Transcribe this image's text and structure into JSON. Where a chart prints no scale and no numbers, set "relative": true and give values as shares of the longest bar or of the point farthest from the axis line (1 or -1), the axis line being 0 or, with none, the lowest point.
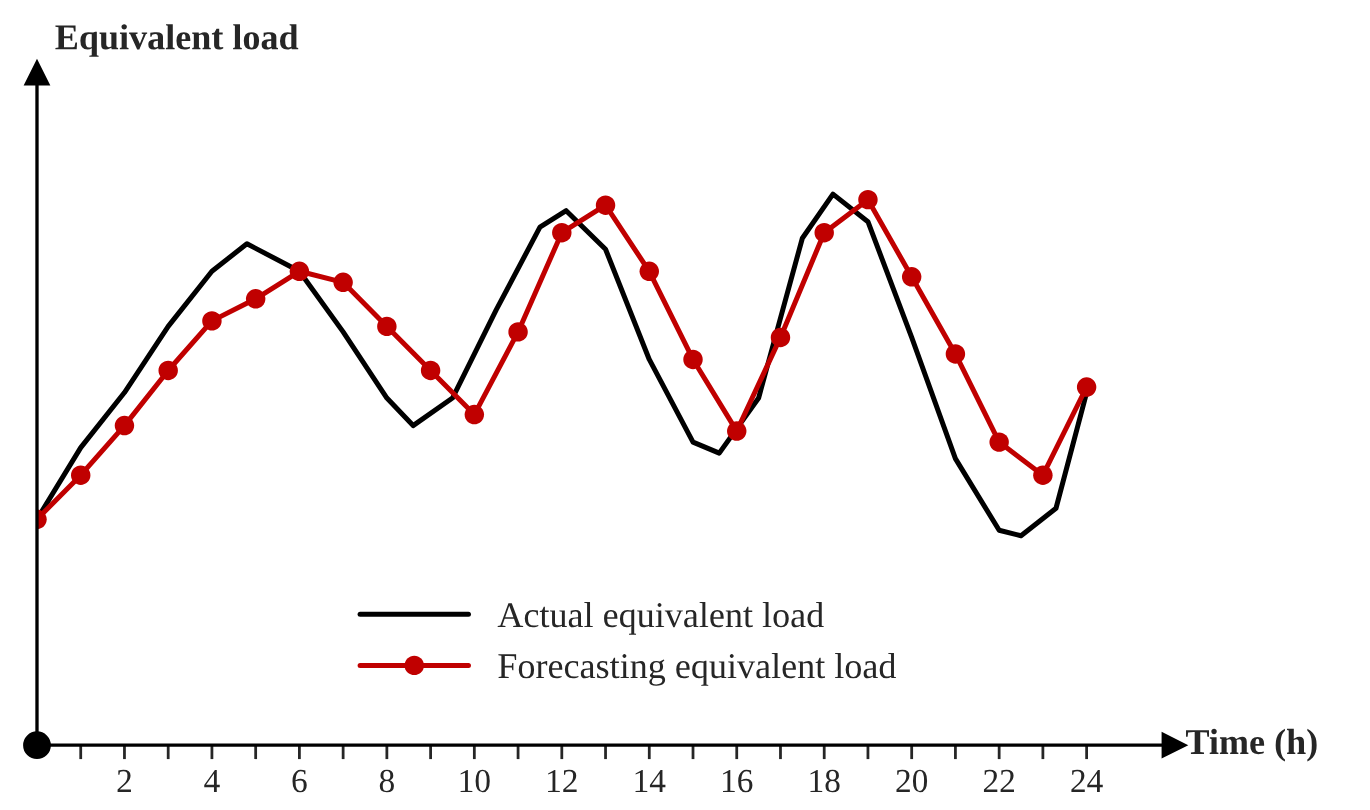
{
  "chart_data": {
    "type": "line",
    "relative": true,
    "ylabel": "Equivalent load",
    "xlabel": "Time (h)",
    "xlim": [
      0,
      26
    ],
    "xticks": [
      {
        "value": 1,
        "label": null
      },
      2,
      {
        "value": 3,
        "label": null
      },
      4,
      {
        "value": 5,
        "label": null
      },
      6,
      {
        "value": 7,
        "label": null
      },
      8,
      {
        "value": 9,
        "label": null
      },
      10,
      {
        "value": 11,
        "label": null
      },
      12,
      {
        "value": 13,
        "label": null
      },
      14,
      {
        "value": 15,
        "label": null
      },
      16,
      {
        "value": 17,
        "label": null
      },
      18,
      {
        "value": 19,
        "label": null
      },
      20,
      {
        "value": 21,
        "label": null
      },
      22,
      {
        "value": 23,
        "label": null
      },
      24
    ],
    "legend": "bottom",
    "grid": false,
    "line_style": "solid",
    "series": [
      {
        "name": "Actual equivalent load",
        "color": "#000000",
        "marker": "none",
        "x": [
          0,
          1,
          2,
          3,
          4,
          4.8,
          6,
          7,
          8,
          8.6,
          9.5,
          10.5,
          11.5,
          12.1,
          13,
          14,
          15,
          15.6,
          16.5,
          17.5,
          18.2,
          19,
          20,
          21,
          22,
          22.5,
          23.3,
          24
        ],
        "values": [
          0.41,
          0.54,
          0.64,
          0.76,
          0.86,
          0.91,
          0.86,
          0.75,
          0.63,
          0.58,
          0.63,
          0.79,
          0.94,
          0.97,
          0.9,
          0.7,
          0.55,
          0.53,
          0.63,
          0.92,
          1,
          0.95,
          0.74,
          0.52,
          0.39,
          0.38,
          0.43,
          0.64
        ]
      },
      {
        "name": "Forecasting equivalent load",
        "color": "#c00000",
        "marker": "circle",
        "x": [
          0,
          1,
          2,
          3,
          4,
          5,
          6,
          7,
          8,
          9,
          10,
          11,
          12,
          13,
          14,
          15,
          16,
          17,
          18,
          19,
          20,
          21,
          22,
          23,
          24
        ],
        "values": [
          0.41,
          0.49,
          0.58,
          0.68,
          0.77,
          0.81,
          0.86,
          0.84,
          0.76,
          0.68,
          0.6,
          0.75,
          0.93,
          0.98,
          0.86,
          0.7,
          0.57,
          0.74,
          0.93,
          0.99,
          0.85,
          0.71,
          0.55,
          0.49,
          0.65
        ]
      }
    ]
  }
}
